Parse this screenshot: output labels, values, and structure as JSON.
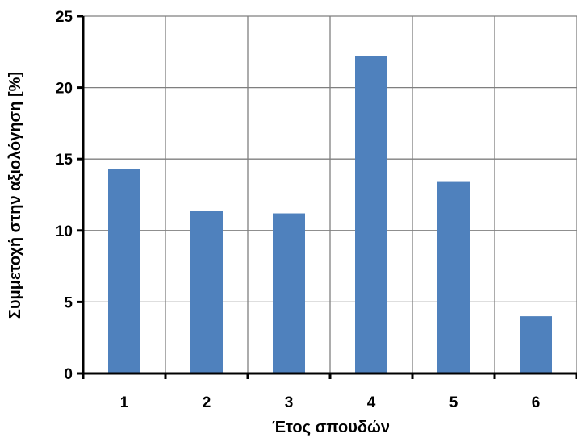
{
  "chart_data": {
    "type": "bar",
    "title": "",
    "xlabel": "Έτος σπουδών",
    "ylabel": "Συμμετοχή στην αξιολόγηση [%]",
    "categories": [
      "1",
      "2",
      "3",
      "4",
      "5",
      "6"
    ],
    "values": [
      14.3,
      11.4,
      11.2,
      22.2,
      13.4,
      4.0
    ],
    "ylim": [
      0,
      25
    ],
    "yticks": [
      "0",
      "5",
      "10",
      "15",
      "20",
      "25"
    ],
    "grid": true,
    "legend": "none",
    "bar_color": "#4f81bd",
    "grid_color": "#7f7f7f",
    "axis_color": "#000000"
  }
}
